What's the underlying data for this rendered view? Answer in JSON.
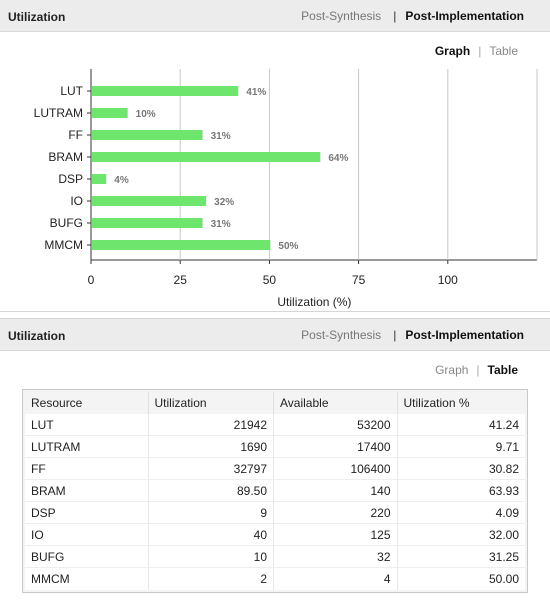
{
  "graph_panel": {
    "title": "Utilization",
    "tabs": [
      {
        "label": "Post-Synthesis",
        "active": false
      },
      {
        "label": "Post-Implementation",
        "active": true
      }
    ],
    "views": [
      {
        "label": "Graph",
        "active": true
      },
      {
        "label": "Table",
        "active": false
      }
    ]
  },
  "table_panel": {
    "title": "Utilization",
    "tabs": [
      {
        "label": "Post-Synthesis",
        "active": false
      },
      {
        "label": "Post-Implementation",
        "active": true
      }
    ],
    "views": [
      {
        "label": "Graph",
        "active": false
      },
      {
        "label": "Table",
        "active": true
      }
    ],
    "columns": [
      "Resource",
      "Utilization",
      "Available",
      "Utilization %"
    ],
    "rows": [
      [
        "LUT",
        "21942",
        "53200",
        "41.24"
      ],
      [
        "LUTRAM",
        "1690",
        "17400",
        "9.71"
      ],
      [
        "FF",
        "32797",
        "106400",
        "30.82"
      ],
      [
        "BRAM",
        "89.50",
        "140",
        "63.93"
      ],
      [
        "DSP",
        "9",
        "220",
        "4.09"
      ],
      [
        "IO",
        "40",
        "125",
        "32.00"
      ],
      [
        "BUFG",
        "10",
        "32",
        "31.25"
      ],
      [
        "MMCM",
        "2",
        "4",
        "50.00"
      ]
    ]
  },
  "chart_data": {
    "type": "bar",
    "orientation": "horizontal",
    "categories": [
      "LUT",
      "LUTRAM",
      "FF",
      "BRAM",
      "DSP",
      "IO",
      "BUFG",
      "MMCM"
    ],
    "values": [
      41,
      10,
      31,
      64,
      4,
      32,
      31,
      50
    ],
    "value_labels": [
      "41%",
      "10%",
      "31%",
      "64%",
      "4%",
      "32%",
      "31%",
      "50%"
    ],
    "xlabel": "Utilization (%)",
    "ylabel": "",
    "xlim": [
      0,
      125
    ],
    "xticks": [
      0,
      25,
      50,
      75,
      100
    ],
    "grid": true,
    "bar_color": "#6ee66e"
  }
}
